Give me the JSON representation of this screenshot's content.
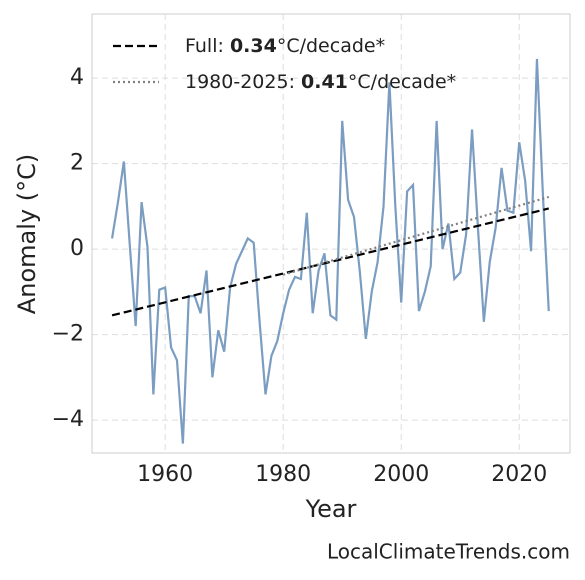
{
  "chart_data": {
    "type": "line",
    "x_label": "Year",
    "y_label": "Anomaly (°C)",
    "source": "LocalClimateTrends.com",
    "xlim": [
      1947.6,
      2028.6
    ],
    "ylim": [
      -4.77,
      5.5
    ],
    "xticks": [
      1960,
      1980,
      2000,
      2020
    ],
    "yticks": [
      {
        "value": -4,
        "label": "−4"
      },
      {
        "value": -2,
        "label": "−2"
      },
      0,
      2,
      4
    ],
    "grid": true,
    "legend": "upper left",
    "series": [
      {
        "color": "#7b9dc1",
        "style": "solid",
        "x": [
          1951,
          1952,
          1953,
          1954,
          1955,
          1956,
          1957,
          1958,
          1959,
          1960,
          1961,
          1962,
          1963,
          1964,
          1965,
          1966,
          1967,
          1968,
          1969,
          1970,
          1971,
          1972,
          1973,
          1974,
          1975,
          1976,
          1977,
          1978,
          1979,
          1980,
          1981,
          1982,
          1983,
          1984,
          1985,
          1986,
          1987,
          1988,
          1989,
          1990,
          1991,
          1992,
          1993,
          1994,
          1995,
          1996,
          1997,
          1998,
          1999,
          2000,
          2001,
          2002,
          2003,
          2004,
          2005,
          2006,
          2007,
          2008,
          2009,
          2010,
          2011,
          2012,
          2013,
          2014,
          2015,
          2016,
          2017,
          2018,
          2019,
          2020,
          2021,
          2022,
          2023,
          2024,
          2025
        ],
        "values": [
          0.25,
          1.1,
          2.05,
          0.1,
          -1.8,
          1.1,
          0.05,
          -3.4,
          -0.95,
          -0.9,
          -2.3,
          -2.6,
          -4.55,
          -1.1,
          -1.1,
          -1.5,
          -0.5,
          -3.0,
          -1.9,
          -2.4,
          -0.9,
          -0.35,
          -0.05,
          0.25,
          0.15,
          -1.7,
          -3.4,
          -2.5,
          -2.15,
          -1.5,
          -0.95,
          -0.65,
          -0.7,
          0.85,
          -1.5,
          -0.5,
          -0.1,
          -1.55,
          -1.65,
          3.0,
          1.15,
          0.75,
          -0.55,
          -2.1,
          -1.0,
          -0.3,
          1.0,
          3.9,
          1.0,
          -1.25,
          1.35,
          1.5,
          -1.45,
          -1.0,
          -0.4,
          3.0,
          0.0,
          0.6,
          -0.7,
          -0.55,
          0.35,
          2.8,
          0.5,
          -1.7,
          -0.3,
          0.5,
          1.9,
          0.9,
          0.85,
          2.5,
          1.6,
          -0.05,
          4.45,
          1.3,
          -1.45
        ]
      },
      {
        "name": "Full: 0.34°C/decade*",
        "color": "#000000",
        "style": "dashed",
        "x": [
          1951,
          2025
        ],
        "values": [
          -1.55,
          0.95
        ]
      },
      {
        "name": "1980-2025: 0.41°C/decade*",
        "color": "#808080",
        "style": "dotted",
        "x": [
          1980,
          2025
        ],
        "values": [
          -0.6,
          1.22
        ]
      }
    ]
  }
}
